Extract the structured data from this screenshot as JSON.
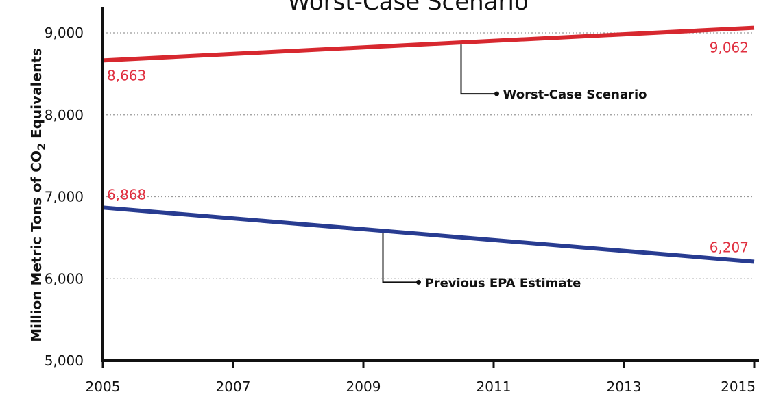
{
  "chart_data": {
    "type": "line",
    "title": "Worst-Case Scenario",
    "ylabel": {
      "pre": "Million Metric Tons of CO",
      "sub": "2",
      "post": " Equivalents"
    },
    "xlim": [
      2005,
      2015
    ],
    "ylim": [
      5000,
      9000
    ],
    "xticks": [
      2005,
      2007,
      2009,
      2011,
      2013,
      2015
    ],
    "xtick_labels": [
      "2005",
      "2007",
      "2009",
      "2011",
      "2013",
      "2015"
    ],
    "yticks": [
      5000,
      6000,
      7000,
      8000,
      9000
    ],
    "ytick_labels": [
      "5,000",
      "6,000",
      "7,000",
      "8,000",
      "9,000"
    ],
    "grid": "horizontal dotted",
    "series": [
      {
        "name": "Worst-Case Scenario",
        "color": "#d7282f",
        "x": [
          2005,
          2015
        ],
        "y": [
          8663,
          9062
        ],
        "data_labels": [
          "8,663",
          "9,062"
        ],
        "annotation": {
          "text": "Worst-Case Scenario",
          "x_anchor": 2010.5
        }
      },
      {
        "name": "Previous EPA Estimate",
        "color": "#283c91",
        "x": [
          2005,
          2015
        ],
        "y": [
          6868,
          6207
        ],
        "data_labels": [
          "6,868",
          "6,207"
        ],
        "annotation": {
          "text": "Previous EPA Estimate",
          "x_anchor": 2009.3
        }
      }
    ],
    "data_label_color": "#e03040"
  }
}
